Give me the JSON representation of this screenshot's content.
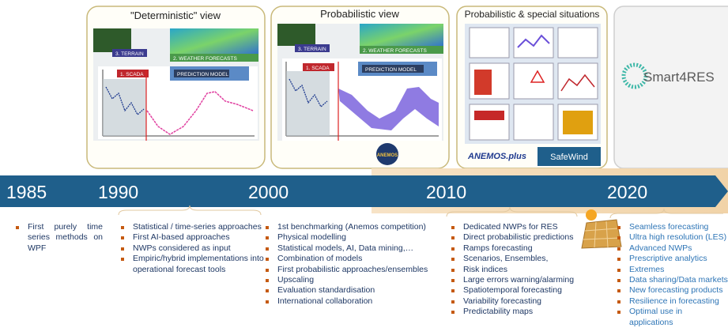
{
  "panels": [
    {
      "title": "\"Deterministic\" view",
      "labels": [
        "3. TERRAIN",
        "2. WEATHER FORECASTS",
        "1. SCADA",
        "PREDICTION MODEL"
      ]
    },
    {
      "title": "Probabilistic view",
      "labels": [
        "3. TERRAIN",
        "2. WEATHER FORECASTS",
        "1. SCADA",
        "PREDICTION MODEL"
      ],
      "logo": "ANEMOS"
    },
    {
      "title": "Probabilistic & special situations",
      "logos": [
        "ANEMOS.plus",
        "SafeWind"
      ]
    },
    {
      "logo": "Smart4RES"
    }
  ],
  "timeline": [
    "1985",
    "1990",
    "2000",
    "2010",
    "2020"
  ],
  "columns": [
    [
      "First purely time series methods on WPF"
    ],
    [
      "Statistical / time-series approaches",
      "First AI-based approaches",
      "NWPs considered as input",
      "Empiric/hybrid implementations into operational forecast tools"
    ],
    [
      "1st benchmarking (Anemos competition)",
      "Physical modelling",
      "Statistical models, AI, Data mining,…",
      "Combination of models",
      "First probabilistic approaches/ensembles",
      "Upscaling",
      "Evaluation standardisation",
      "International collaboration"
    ],
    [
      "Dedicated NWPs for RES",
      "Direct probabilistic predictions",
      "Ramps forecasting",
      "Scenarios, Ensembles,",
      "Risk indices",
      "Large errors warning/alarming",
      "Spatiotemporal forecasting",
      "Variability forecasting",
      "Predictability maps"
    ],
    [
      "Seamless forecasting",
      "Ultra high resolution (LES)",
      "Advanced NWPs",
      "Prescriptive analytics",
      "Extremes",
      "Data sharing/Data markets",
      "New forecasting products",
      "Resilience in forecasting",
      "Optimal use in applications"
    ]
  ]
}
